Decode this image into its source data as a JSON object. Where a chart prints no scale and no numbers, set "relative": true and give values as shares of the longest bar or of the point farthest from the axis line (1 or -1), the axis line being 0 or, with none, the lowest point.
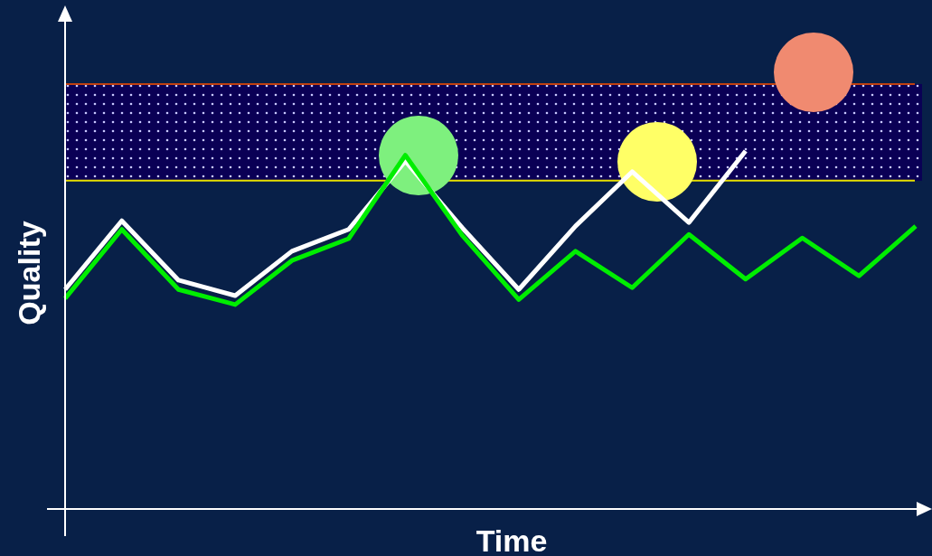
{
  "chart_data": {
    "type": "line",
    "relative": true,
    "xlabel": "Time",
    "ylabel": "Quality",
    "categories": [
      null,
      null,
      null,
      null,
      null,
      null,
      null,
      null,
      null,
      null,
      null,
      null,
      null,
      null,
      null,
      null
    ],
    "series": [
      {
        "color": "#ffffff",
        "values": [
          0.613,
          0.805,
          0.639,
          0.596,
          0.72,
          0.781,
          0.972,
          0.786,
          0.613,
          0.79,
          0.942,
          0.8,
          1.0,
          null,
          null,
          null
        ]
      },
      {
        "color": "#00ee00",
        "values": [
          0.588,
          0.781,
          0.613,
          0.571,
          0.694,
          0.755,
          0.988,
          0.765,
          0.585,
          0.72,
          0.618,
          0.767,
          0.642,
          0.757,
          0.651,
          0.79
        ]
      }
    ],
    "bands": [
      {
        "axis": "y",
        "from": 0.917,
        "to": 1.187,
        "color": "#0a0055"
      }
    ],
    "ref_lines": [
      {
        "axis": "y",
        "value": 0.917,
        "color": "#e8e000"
      },
      {
        "axis": "y",
        "value": 1.187,
        "color": "#c04010"
      }
    ]
  }
}
